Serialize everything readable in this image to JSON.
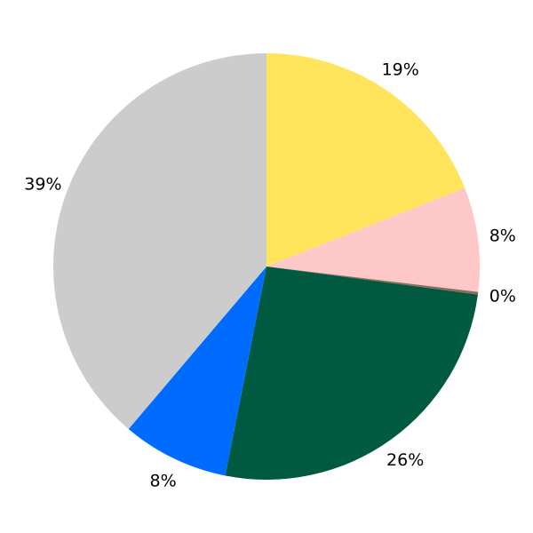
{
  "chart_data": {
    "type": "pie",
    "start_angle": "top",
    "direction": "clockwise",
    "slices": [
      {
        "label": "19%",
        "value": 19.0,
        "color": "#FFE45C"
      },
      {
        "label": "8%",
        "value": 7.9,
        "color": "#FFC8C8"
      },
      {
        "label": "0%",
        "value": 0.2,
        "color": "#8C6E5A"
      },
      {
        "label": "26%",
        "value": 26.0,
        "color": "#005A40"
      },
      {
        "label": "8%",
        "value": 8.1,
        "color": "#006CFF"
      },
      {
        "label": "39%",
        "value": 38.8,
        "color": "#CCCCCC"
      }
    ]
  }
}
